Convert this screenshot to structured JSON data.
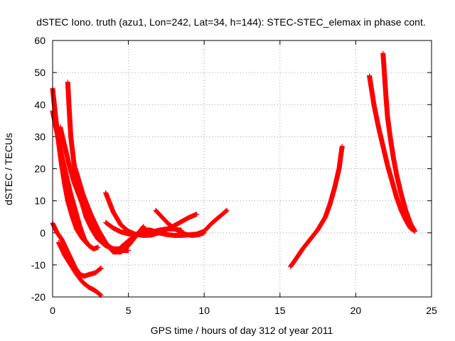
{
  "chart_data": {
    "type": "scatter",
    "title": "dSTEC Iono. truth (azu1, Lon=242, Lat=34, h=144): STEC-STEC_elemax in phase cont.",
    "xlabel": "GPS time / hours of day 312 of year 2011",
    "ylabel": "dSTEC  / TECUs",
    "xlim": [
      0,
      25
    ],
    "ylim": [
      -20,
      60
    ],
    "x_ticks": [
      0,
      5,
      10,
      15,
      20,
      25
    ],
    "y_ticks": [
      -20,
      -10,
      0,
      10,
      20,
      30,
      40,
      50,
      60
    ],
    "x_tick_labels": [
      "0",
      "5",
      "10",
      "15",
      "20",
      "25"
    ],
    "y_tick_labels": [
      "-20",
      "-10",
      "0",
      "10",
      "20",
      "30",
      "40",
      "50",
      "60"
    ],
    "grid": true,
    "marker": "+",
    "color": "#ff0000",
    "series": [
      {
        "x": [
          0.0,
          0.2,
          0.4,
          0.6,
          0.8,
          1.0,
          1.3,
          1.6,
          2.0,
          2.4,
          2.7,
          3.0
        ],
        "y": [
          45,
          36,
          28,
          21,
          15,
          10,
          5,
          1,
          -2,
          -4,
          -5,
          -4.5
        ]
      },
      {
        "x": [
          0.0,
          0.3,
          0.6,
          0.9,
          1.2,
          1.5,
          1.8,
          2.1,
          2.4,
          2.7
        ],
        "y": [
          38,
          31,
          24,
          18,
          12,
          7,
          2,
          -2,
          -4,
          -5
        ]
      },
      {
        "x": [
          0.0,
          0.3,
          0.6,
          0.9,
          1.2,
          1.5,
          1.8,
          2.1,
          2.4,
          2.8,
          3.2
        ],
        "y": [
          3,
          0,
          -2,
          -5,
          -8,
          -11,
          -13,
          -13.5,
          -13,
          -12.5,
          -11
        ]
      },
      {
        "x": [
          0.4,
          0.8,
          1.2,
          1.6,
          2.0,
          2.4,
          2.8,
          3.2
        ],
        "y": [
          -3,
          -7,
          -10,
          -13,
          -15.5,
          -17,
          -18,
          -19.5
        ]
      },
      {
        "x": [
          1.0,
          1.1,
          1.2,
          1.4,
          1.6,
          1.9,
          2.2,
          2.6,
          3.0,
          3.5,
          4.0,
          4.5,
          5.0
        ],
        "y": [
          47,
          38,
          30,
          22,
          16,
          10,
          5,
          1,
          -2,
          -4,
          -5,
          -5.5,
          -5.5
        ]
      },
      {
        "x": [
          0.5,
          0.8,
          1.1,
          1.4,
          1.8,
          2.2,
          2.6,
          3.0,
          3.5,
          4.0,
          4.5
        ],
        "y": [
          33,
          27,
          21,
          16,
          11,
          6,
          2,
          -1,
          -3.5,
          -5,
          -5
        ]
      },
      {
        "x": [
          1.5,
          2.0,
          2.5,
          3.0,
          3.5,
          4.0,
          4.5,
          5.0,
          5.5,
          6.0
        ],
        "y": [
          20,
          12,
          6,
          1,
          -3,
          -6,
          -6,
          -4,
          -1,
          2
        ]
      },
      {
        "x": [
          3.5,
          4.0,
          4.5,
          5.0,
          5.5,
          6.0,
          6.5,
          7.0,
          7.5,
          8.0,
          8.5,
          9.0,
          9.5
        ],
        "y": [
          12.5,
          6.5,
          2.5,
          0.5,
          -0.5,
          -0.8,
          -0.7,
          0.0,
          1.0,
          2.2,
          3.5,
          4.8,
          5.8
        ]
      },
      {
        "x": [
          3.5,
          4.0,
          4.5,
          5.0,
          5.5,
          6.0,
          6.5,
          7.0,
          7.5,
          8.0,
          8.5
        ],
        "y": [
          3.2,
          1.5,
          0.3,
          -0.3,
          -0.5,
          -0.3,
          0.2,
          0.8,
          1.2,
          1.2,
          0.8
        ]
      },
      {
        "x": [
          4.5,
          5.0,
          5.5,
          6.0,
          6.5,
          7.0,
          7.5,
          8.0,
          8.5,
          9.0,
          9.5,
          10.0,
          10.5,
          11.0,
          11.5
        ],
        "y": [
          -4.5,
          -2.5,
          -0.5,
          1.0,
          0.8,
          0.0,
          -0.5,
          -0.8,
          -0.8,
          -0.6,
          -0.4,
          0.5,
          3,
          5,
          7
        ]
      },
      {
        "x": [
          6.8,
          7.2,
          7.6,
          8.0,
          8.4,
          8.8,
          9.2,
          9.6,
          10.0
        ],
        "y": [
          7,
          5,
          3,
          1.5,
          0.3,
          -0.5,
          -0.8,
          -0.6,
          0.0
        ]
      },
      {
        "x": [
          15.7,
          16.0,
          16.5,
          17.0,
          17.5,
          18.0,
          18.3,
          18.6,
          18.9,
          19.1
        ],
        "y": [
          -10.5,
          -8.5,
          -5,
          -2,
          1,
          5,
          9,
          14,
          20,
          27
        ]
      },
      {
        "x": [
          20.9,
          21.2,
          21.5,
          21.8,
          22.1,
          22.4,
          22.7,
          23.0,
          23.3,
          23.6,
          23.9
        ],
        "y": [
          49,
          40,
          33,
          27,
          21,
          16,
          11,
          7,
          4,
          1.5,
          0.5
        ]
      },
      {
        "x": [
          21.8,
          21.9,
          22.0,
          22.1,
          22.3,
          22.5,
          22.7,
          23.0,
          23.3,
          23.6,
          23.9
        ],
        "y": [
          56,
          49,
          42,
          36,
          29,
          23,
          18,
          12,
          7,
          3,
          0.5
        ]
      }
    ]
  }
}
